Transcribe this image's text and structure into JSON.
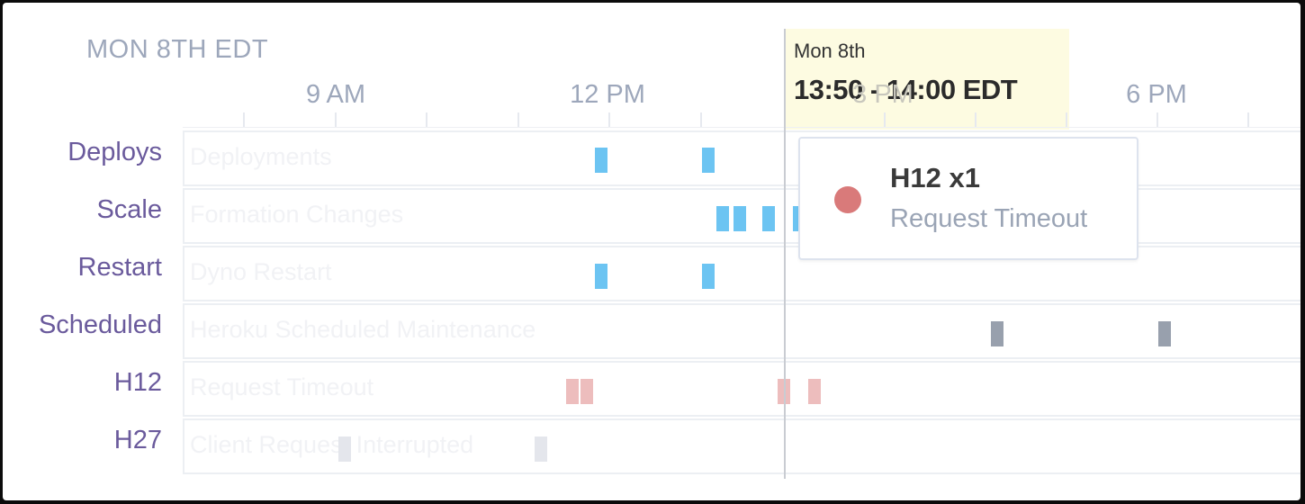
{
  "header": {
    "date_label": "MON 8TH EDT"
  },
  "axis": {
    "ticks": [
      {
        "label": "9 AM"
      },
      {
        "label": "12 PM"
      },
      {
        "label": "3 PM"
      },
      {
        "label": "6 PM"
      }
    ]
  },
  "highlight": {
    "date": "Mon 8th",
    "range": "13:50 - 14:00 EDT"
  },
  "rows": [
    {
      "label": "Deploys",
      "ghost": "Deployments"
    },
    {
      "label": "Scale",
      "ghost": "Formation Changes"
    },
    {
      "label": "Restart",
      "ghost": "Dyno Restart"
    },
    {
      "label": "Scheduled",
      "ghost": "Heroku Scheduled Maintenance"
    },
    {
      "label": "H12",
      "ghost": "Request Timeout"
    },
    {
      "label": "H27",
      "ghost": "Client Request Interrupted"
    }
  ],
  "colors": {
    "deploy": "#6cc4f2",
    "scale": "#6cc4f2",
    "restart": "#6cc4f2",
    "scheduled": "#98a0ad",
    "h12": "#edbdbd",
    "h27": "#e4e6ec"
  },
  "tooltip": {
    "title": "H12 x1",
    "description": "Request Timeout",
    "dot_color": "#d97a7a",
    "icon": "status-dot-icon"
  }
}
